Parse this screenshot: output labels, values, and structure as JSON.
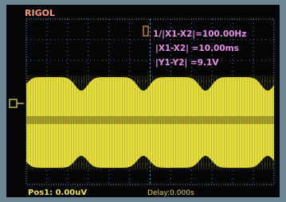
{
  "header": {
    "brand": "RIGOL"
  },
  "cursor": {
    "frequency": "1/|X1-X2|=100.00Hz",
    "delta_x": "|X1-X2| =10.00ms",
    "delta_y": "|Y1-Y2| =9.1V"
  },
  "footer": {
    "position": "Pos1: 0.00uV",
    "delay": "Delay:0.000s"
  }
}
